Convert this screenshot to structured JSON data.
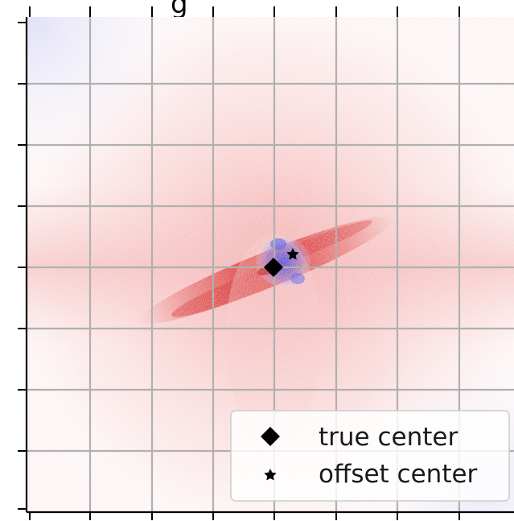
{
  "title_fragment": "g",
  "legend": {
    "true_center_label": "true center",
    "offset_center_label": "offset center"
  },
  "markers": [
    {
      "name": "true center",
      "symbol": "diamond"
    },
    {
      "name": "offset center",
      "symbol": "star"
    }
  ],
  "colors": {
    "positive": "#e03a3a",
    "negative": "#3a3ae0",
    "grid": "#b0b0b0",
    "marker": "#000000"
  },
  "colormap": "bwr",
  "grid": true
}
